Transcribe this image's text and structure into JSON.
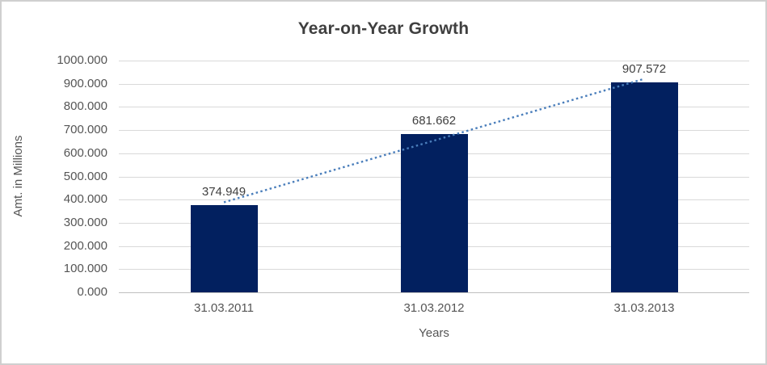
{
  "chart_data": {
    "type": "bar",
    "title": "Year-on-Year Growth",
    "xlabel": "Years",
    "ylabel": "Amt. in Millions",
    "categories": [
      "31.03.2011",
      "31.03.2012",
      "31.03.2013"
    ],
    "values": [
      374.949,
      681.662,
      907.572
    ],
    "data_labels": [
      "374.949",
      "681.662",
      "907.572"
    ],
    "ylim": [
      0,
      1000
    ],
    "ytick_interval": 100,
    "ytick_labels": [
      "0.000",
      "100.000",
      "200.000",
      "300.000",
      "400.000",
      "500.000",
      "600.000",
      "700.000",
      "800.000",
      "900.000",
      "1000.000"
    ],
    "grid": "horizontal",
    "legend": "none",
    "trendline": {
      "type": "linear",
      "style": "dotted"
    }
  },
  "colors": {
    "bar": "#02205f",
    "trendline": "#4a7ebb",
    "gridline": "#d9d9d9",
    "axis_line": "#bfbfbf",
    "tick_text": "#555555",
    "title_text": "#3f3f3f",
    "frame_border": "#cfcfcf",
    "background": "#ffffff"
  }
}
